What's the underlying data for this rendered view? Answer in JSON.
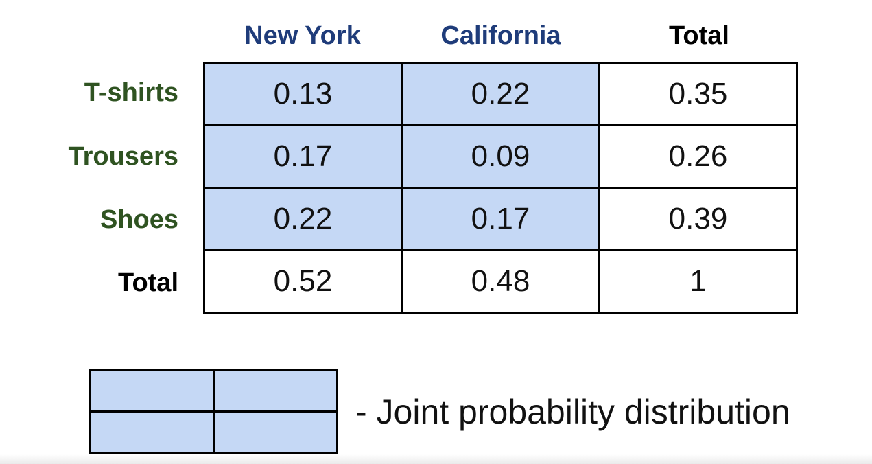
{
  "colors": {
    "joint_cell_fill": "#c5d8f5",
    "column_header_color": "#1f3c7a",
    "row_header_color": "#2f5321",
    "total_label_color": "#000000"
  },
  "table": {
    "column_headers": [
      "New York",
      "California",
      "Total"
    ],
    "row_headers": [
      "T-shirts",
      "Trousers",
      "Shoes",
      "Total"
    ],
    "rows": [
      [
        "0.13",
        "0.22",
        "0.35"
      ],
      [
        "0.17",
        "0.09",
        "0.26"
      ],
      [
        "0.22",
        "0.17",
        "0.39"
      ],
      [
        "0.52",
        "0.48",
        "1"
      ]
    ]
  },
  "legend": {
    "text": "- Joint probability distribution"
  }
}
